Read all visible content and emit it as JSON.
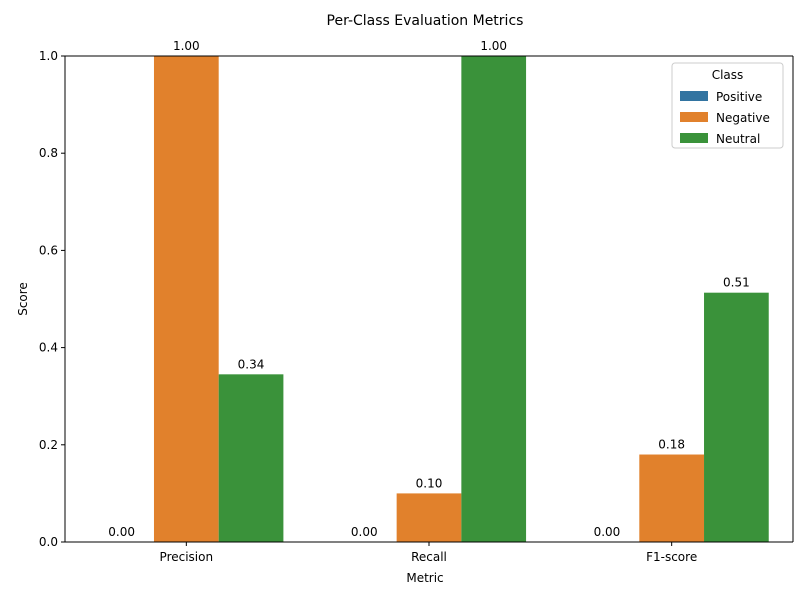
{
  "chart_data": {
    "type": "bar",
    "title": "Per-Class Evaluation Metrics",
    "xlabel": "Metric",
    "ylabel": "Score",
    "categories": [
      "Precision",
      "Recall",
      "F1-score"
    ],
    "ylim": [
      0,
      1.0
    ],
    "yticks": [
      0.0,
      0.2,
      0.4,
      0.6,
      0.8,
      1.0
    ],
    "ytick_labels": [
      "0.0",
      "0.2",
      "0.4",
      "0.6",
      "0.8",
      "1.0"
    ],
    "grid": false,
    "legend": {
      "title": "Class",
      "placement": "top-right"
    },
    "series": [
      {
        "name": "Positive",
        "color": "#3274a1",
        "values": [
          0.0,
          0.0,
          0.0
        ],
        "labels": [
          "0.00",
          "0.00",
          "0.00"
        ]
      },
      {
        "name": "Negative",
        "color": "#e1812c",
        "values": [
          1.0,
          0.1,
          0.18
        ],
        "labels": [
          "1.00",
          "0.10",
          "0.18"
        ]
      },
      {
        "name": "Neutral",
        "color": "#3a923a",
        "values": [
          0.345,
          1.0,
          0.513
        ],
        "labels": [
          "0.34",
          "1.00",
          "0.51"
        ]
      }
    ]
  }
}
